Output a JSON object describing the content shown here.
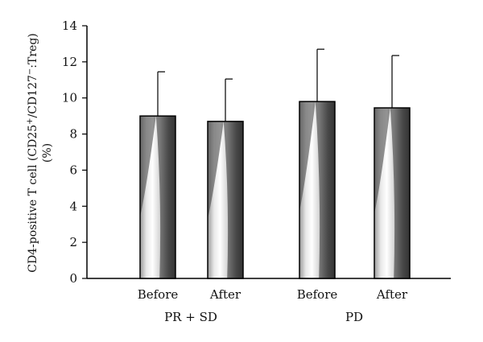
{
  "chart_data": {
    "type": "bar",
    "ylabel_main": "CD4-positive T cell (CD25",
    "ylabel_sup1": "+",
    "ylabel_mid": "/CD127",
    "ylabel_sup2": "−",
    "ylabel_end": ":Treg)",
    "ylabel_unit": "(%)",
    "ylim": [
      0,
      14
    ],
    "yticks": [
      "0",
      "2",
      "4",
      "6",
      "8",
      "10",
      "12",
      "14"
    ],
    "groups": [
      {
        "label": "PR + SD",
        "bars": [
          {
            "label": "Before",
            "value": 9.0,
            "error": 2.45
          },
          {
            "label": "After",
            "value": 8.7,
            "error": 2.35
          }
        ]
      },
      {
        "label": "PD",
        "bars": [
          {
            "label": "Before",
            "value": 9.8,
            "error": 2.9
          },
          {
            "label": "After",
            "value": 9.45,
            "error": 2.9
          }
        ]
      }
    ]
  }
}
